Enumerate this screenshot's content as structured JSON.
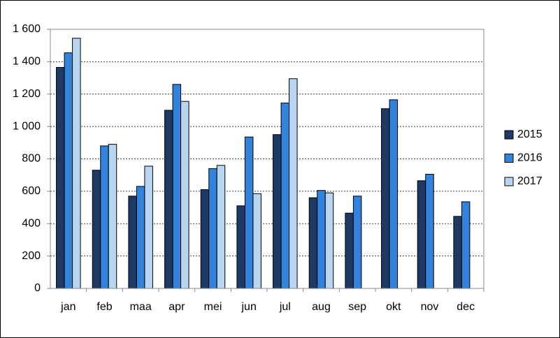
{
  "chart_data": {
    "type": "bar",
    "categories": [
      "jan",
      "feb",
      "maa",
      "apr",
      "mei",
      "jun",
      "jul",
      "aug",
      "sep",
      "okt",
      "nov",
      "dec"
    ],
    "series": [
      {
        "name": "2015",
        "color": "#1c3a63",
        "values": [
          1365,
          730,
          570,
          1100,
          610,
          510,
          950,
          560,
          465,
          1110,
          665,
          445
        ]
      },
      {
        "name": "2016",
        "color": "#3283db",
        "values": [
          1455,
          880,
          630,
          1260,
          740,
          935,
          1145,
          605,
          570,
          1165,
          705,
          535
        ]
      },
      {
        "name": "2017",
        "color": "#b8d5f2",
        "values": [
          1545,
          890,
          755,
          1155,
          760,
          585,
          1295,
          590,
          null,
          null,
          null,
          null
        ]
      }
    ],
    "ylim": [
      0,
      1600
    ],
    "yticks": [
      0,
      200,
      400,
      600,
      800,
      {
        "value": 1000,
        "label": "1 000"
      },
      {
        "value": 1200,
        "label": "1 200"
      },
      {
        "value": 1400,
        "label": "1 400"
      },
      {
        "value": 1600,
        "label": "1 600"
      }
    ],
    "grid": true,
    "legend": "right"
  }
}
